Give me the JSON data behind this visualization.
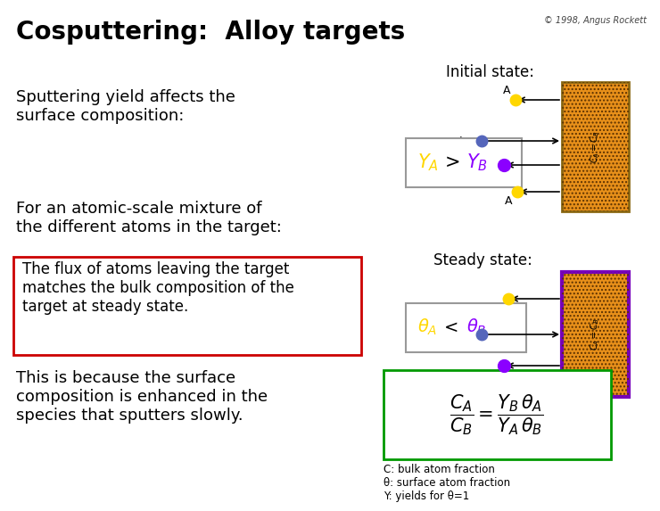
{
  "title": "Cosputtering:  Alloy targets",
  "copyright": "© 1998, Angus Rockett",
  "bg_color": "#ffffff",
  "title_color": "#000000",
  "title_fontsize": 20,
  "color_A": "#FFD700",
  "color_B": "#8B00FF",
  "color_ion": "#5566BB",
  "initial_label": "Initial state:",
  "steady_label": "Steady state:",
  "legend_text": "C: bulk atom fraction\nθ: surface atom fraction\nY: yields for θ=1",
  "flux_box_text": "The flux of atoms leaving the target\nmatches the bulk composition of the\ntarget at steady state."
}
